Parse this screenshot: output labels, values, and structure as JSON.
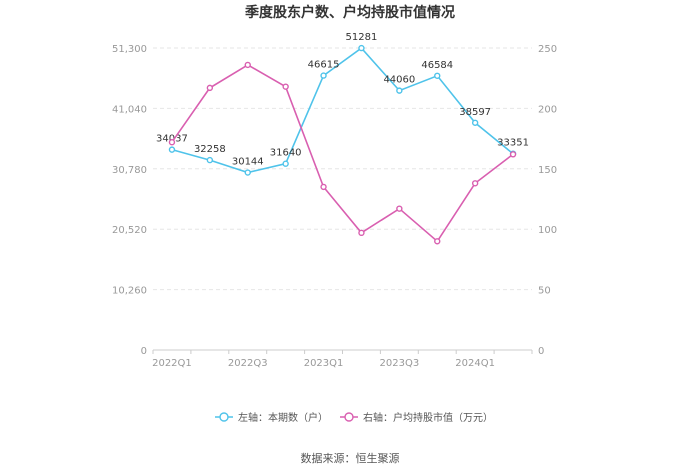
{
  "chart_data": {
    "type": "line",
    "title": "季度股东户数、户均持股市值情况",
    "categories": [
      "2022Q1",
      "2022Q2",
      "2022Q3",
      "2022Q4",
      "2023Q1",
      "2023Q2",
      "2023Q3",
      "2023Q4",
      "2024Q1",
      "2024Q2"
    ],
    "x_tick_labels": [
      "2022Q1",
      "2022Q3",
      "2023Q1",
      "2023Q3",
      "2024Q1"
    ],
    "y_left": {
      "ylim": [
        0,
        51300
      ],
      "ticks": [
        "0",
        "10,260",
        "20,520",
        "30,780",
        "41,040",
        "51,300"
      ]
    },
    "y_right": {
      "ylim": [
        0,
        250
      ],
      "ticks": [
        "0",
        "50",
        "100",
        "150",
        "200",
        "250"
      ]
    },
    "series": [
      {
        "name": "左轴：本期数（户）",
        "axis": "left",
        "color": "#4fc3ea",
        "values": [
          34037,
          32258,
          30144,
          31640,
          46615,
          51281,
          44060,
          46584,
          38597,
          33351
        ],
        "labels": [
          "34037",
          "32258",
          "30144",
          "31640",
          "46615",
          "51281",
          "44060",
          "46584",
          "38597",
          "33351"
        ]
      },
      {
        "name": "右轴：户均持股市值（万元）",
        "axis": "right",
        "color": "#d95fb0",
        "values": [
          172,
          217,
          236,
          218,
          135,
          97,
          117,
          90,
          138,
          162
        ]
      }
    ],
    "legend_position": "bottom",
    "grid": true
  },
  "source": "数据来源：恒生聚源"
}
